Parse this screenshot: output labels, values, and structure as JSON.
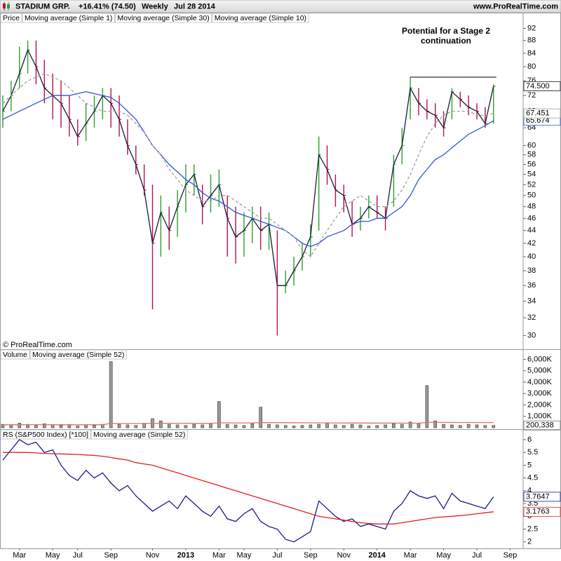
{
  "header": {
    "title": "STADIUM GRP.",
    "change": "+16.41% (74.50)",
    "period": "Weekly",
    "date": "Jul 28 2014",
    "site": "www.ProRealTime.com"
  },
  "copyright": "© ProRealTime.com",
  "chart_data": [
    {
      "type": "ohlc",
      "name": "Price",
      "log_scale": true,
      "ylim": [
        29.5,
        94
      ],
      "yticks": [
        92,
        88,
        84,
        80,
        76,
        72,
        68,
        64,
        60,
        58,
        56,
        54,
        52,
        50,
        48,
        46,
        44,
        42,
        40,
        38,
        36,
        34,
        32,
        30
      ],
      "up_color": "#2e9e2e",
      "down_color": "#b3124a",
      "high": [
        72,
        76,
        86,
        88,
        88,
        82,
        78,
        76,
        72,
        66,
        70,
        72,
        74,
        74,
        72,
        66,
        60,
        56,
        52,
        50,
        48,
        51,
        56,
        56,
        52,
        54,
        55,
        50,
        48,
        47,
        48,
        48,
        47,
        44,
        38,
        40,
        42,
        45,
        62,
        60,
        54,
        52,
        49,
        48,
        50,
        50,
        48,
        58,
        64,
        77,
        74,
        71,
        70,
        68,
        74,
        73,
        72,
        70,
        69,
        75,
        null,
        null,
        null,
        null
      ],
      "low": [
        64,
        68,
        74,
        78,
        75,
        70,
        66,
        64,
        62,
        60,
        61,
        64,
        66,
        64,
        62,
        58,
        54,
        50,
        33,
        40,
        41,
        43,
        47,
        50,
        45,
        47,
        48,
        40,
        39,
        40,
        42,
        41,
        41,
        30,
        35,
        36,
        38,
        40,
        44,
        52,
        48,
        47,
        43,
        44,
        46,
        46,
        44,
        48,
        56,
        66,
        67,
        66,
        64,
        62,
        66,
        69,
        67,
        66,
        64,
        65,
        null,
        null,
        null,
        null
      ],
      "close": [
        68,
        72,
        78,
        85,
        80,
        74,
        72,
        70,
        66,
        62,
        65,
        68,
        72,
        70,
        66,
        60,
        56,
        51,
        42,
        47,
        44,
        48,
        52,
        54,
        48,
        50,
        52,
        46,
        43,
        44,
        46,
        44,
        45,
        36,
        36,
        38,
        40,
        43,
        58,
        55,
        51,
        50,
        45,
        46,
        48,
        47,
        46,
        56,
        60,
        74,
        70,
        68,
        67,
        64,
        73,
        71,
        69,
        68,
        65,
        74.5,
        null,
        null,
        null,
        null
      ],
      "value_labels": [
        null,
        null,
        null,
        null,
        null,
        null,
        null,
        null,
        null,
        null,
        null,
        null,
        null,
        null,
        null,
        null,
        null,
        null,
        null,
        null,
        null,
        null,
        null,
        null,
        null,
        null,
        null,
        null,
        null,
        null,
        null,
        null,
        null,
        null,
        null,
        null,
        null,
        null,
        null,
        null,
        null,
        null,
        null,
        null,
        null,
        null,
        null,
        null,
        null,
        null,
        null,
        null,
        null,
        null,
        null,
        null,
        null,
        null,
        null,
        "74.50",
        null,
        null,
        null,
        null
      ],
      "annotation": [
        "Potential for a Stage 2",
        "continuation"
      ],
      "hline": 77,
      "series": [
        {
          "name": "Moving average (Simple 1)",
          "color": "#1a1a3a",
          "values": [
            68,
            72,
            78,
            85,
            80,
            74,
            72,
            70,
            66,
            62,
            65,
            68,
            72,
            70,
            66,
            60,
            56,
            51,
            42,
            47,
            44,
            48,
            52,
            54,
            48,
            50,
            52,
            46,
            43,
            44,
            46,
            44,
            45,
            36,
            36,
            38,
            40,
            43,
            58,
            55,
            51,
            50,
            45,
            46,
            48,
            47,
            46,
            56,
            60,
            74,
            70,
            68,
            67,
            64,
            73,
            71,
            69,
            68,
            65,
            74.5,
            null,
            null,
            null,
            null
          ],
          "value_labels": [
            null,
            null,
            null,
            null,
            null,
            null,
            null,
            null,
            null,
            null,
            null,
            null,
            null,
            null,
            null,
            null,
            null,
            null,
            null,
            null,
            null,
            null,
            null,
            null,
            null,
            null,
            null,
            null,
            null,
            null,
            null,
            null,
            null,
            null,
            null,
            null,
            null,
            null,
            null,
            null,
            null,
            null,
            null,
            null,
            null,
            null,
            null,
            null,
            null,
            null,
            null,
            null,
            null,
            null,
            null,
            null,
            null,
            null,
            null,
            "74.500",
            null,
            null,
            null,
            null
          ]
        },
        {
          "name": "Moving average (Simple 30)",
          "color": "#2f56d6",
          "show_last": true,
          "values": [
            66,
            67,
            68,
            69,
            70,
            71,
            72,
            72,
            72,
            72.5,
            73,
            72.5,
            72,
            71.5,
            70,
            68,
            66,
            63,
            60,
            58,
            56,
            54.5,
            53,
            52,
            50.5,
            49.5,
            49,
            48,
            47,
            46.5,
            46,
            45.5,
            45,
            44.5,
            44,
            43,
            42,
            41.5,
            42,
            43,
            43.5,
            44,
            45,
            45.5,
            45.5,
            46,
            46,
            47,
            48,
            50,
            53,
            55,
            57,
            58,
            59.5,
            61,
            62.5,
            63.5,
            64.5,
            65.674,
            null,
            null,
            null,
            null
          ]
        },
        {
          "name": "Moving average (Simple 10)",
          "color": "#a0a0a0",
          "dashed": true,
          "show_last": true,
          "values": [
            70,
            72,
            74,
            76,
            77,
            78,
            77,
            76,
            74,
            72,
            70,
            69,
            68,
            68,
            68,
            67,
            65,
            63,
            60,
            58,
            55,
            53,
            51,
            50,
            49,
            49,
            50,
            50,
            49,
            48,
            47,
            46,
            46,
            45,
            44,
            43,
            41,
            40,
            42,
            44,
            46,
            48,
            49,
            50,
            49,
            48,
            48,
            49,
            51,
            54,
            58,
            62,
            65,
            67,
            68,
            68,
            68,
            67,
            67,
            67.451,
            null,
            null,
            null,
            null
          ]
        }
      ]
    },
    {
      "type": "bar",
      "name": "Volume",
      "color": "#9a9a9a",
      "ylim": [
        0,
        6700
      ],
      "yticks": [
        {
          "value": 6000,
          "label": "6,000K"
        },
        {
          "value": 5000,
          "label": "5,000K"
        },
        {
          "value": 4000,
          "label": "4,000K"
        },
        {
          "value": 3000,
          "label": "3,000K"
        },
        {
          "value": 2000,
          "label": "2,000K"
        },
        {
          "value": 1000,
          "label": "1,000K"
        }
      ],
      "values": [
        300,
        250,
        400,
        300,
        200,
        350,
        250,
        200,
        300,
        150,
        250,
        200,
        300,
        5800,
        300,
        250,
        200,
        400,
        800,
        600,
        300,
        250,
        200,
        300,
        250,
        400,
        2300,
        300,
        250,
        200,
        350,
        1800,
        300,
        250,
        200,
        150,
        200,
        250,
        300,
        400,
        250,
        200,
        300,
        250,
        150,
        200,
        250,
        350,
        300,
        500,
        400,
        3700,
        600,
        300,
        250,
        200,
        300,
        250,
        200,
        200.338,
        null,
        null,
        null,
        null
      ],
      "value_labels": [
        null,
        null,
        null,
        null,
        null,
        null,
        null,
        null,
        null,
        null,
        null,
        null,
        null,
        null,
        null,
        null,
        null,
        null,
        null,
        null,
        null,
        null,
        null,
        null,
        null,
        null,
        null,
        null,
        null,
        null,
        null,
        null,
        null,
        null,
        null,
        null,
        null,
        null,
        null,
        null,
        null,
        null,
        null,
        null,
        null,
        null,
        null,
        null,
        null,
        null,
        null,
        null,
        null,
        null,
        null,
        null,
        null,
        null,
        null,
        "200,338",
        null,
        null,
        null,
        null
      ],
      "series": [
        {
          "name": "Moving average (Simple 52)",
          "color": "#e07070",
          "values": [
            260,
            262,
            265,
            268,
            270,
            268,
            266,
            264,
            262,
            260,
            262,
            264,
            266,
            380,
            378,
            376,
            374,
            378,
            390,
            398,
            396,
            394,
            392,
            390,
            388,
            392,
            430,
            428,
            426,
            424,
            422,
            450,
            448,
            446,
            444,
            440,
            436,
            432,
            428,
            426,
            424,
            420,
            418,
            416,
            414,
            412,
            410,
            408,
            406,
            404,
            402,
            470,
            468,
            466,
            464,
            462,
            460,
            458,
            456,
            454,
            null,
            null,
            null,
            null
          ]
        }
      ]
    },
    {
      "type": "line",
      "ylim": [
        1.8,
        6.3
      ],
      "yticks": [
        6,
        5.5,
        5,
        4.5,
        4,
        3.5,
        3,
        2.5,
        2
      ],
      "categories": [
        null,
        null,
        "Mar",
        null,
        null,
        null,
        "May",
        null,
        null,
        "Jul",
        null,
        null,
        null,
        "Sep",
        null,
        null,
        null,
        null,
        "Nov",
        null,
        null,
        null,
        "2013",
        null,
        null,
        null,
        "Mar",
        null,
        null,
        "May",
        null,
        null,
        null,
        "Jul",
        null,
        null,
        null,
        "Sep",
        null,
        null,
        null,
        "Nov",
        null,
        null,
        null,
        "2014",
        null,
        null,
        null,
        "Mar",
        null,
        null,
        null,
        "May",
        null,
        null,
        null,
        "Jul",
        null,
        null,
        null,
        "Sep",
        null,
        null
      ],
      "series": [
        {
          "name": "RS (S&P500 Index) [*100]",
          "color": "#1a1a8c",
          "show_last": true,
          "values": [
            5.2,
            5.6,
            6.0,
            5.8,
            5.9,
            5.5,
            5.6,
            5.0,
            4.6,
            4.4,
            4.8,
            4.5,
            4.7,
            4.3,
            4.0,
            4.2,
            3.8,
            3.5,
            3.2,
            3.4,
            3.6,
            3.3,
            3.8,
            3.5,
            3.2,
            3.0,
            3.4,
            2.9,
            2.8,
            3.1,
            3.3,
            2.8,
            2.6,
            2.5,
            2.1,
            2.0,
            2.2,
            2.4,
            3.6,
            3.3,
            3.0,
            2.8,
            2.9,
            2.6,
            2.7,
            2.6,
            2.5,
            3.2,
            3.5,
            4.0,
            3.8,
            3.7,
            3.8,
            3.3,
            3.9,
            3.6,
            3.5,
            3.4,
            3.3,
            3.7647,
            null,
            null,
            null,
            null
          ]
        },
        {
          "name": "Moving average (Simple 52)",
          "color": "#e02020",
          "show_last": true,
          "values": [
            5.5,
            5.5,
            5.5,
            5.5,
            5.48,
            5.46,
            5.45,
            5.44,
            5.43,
            5.42,
            5.4,
            5.38,
            5.35,
            5.3,
            5.25,
            5.2,
            5.1,
            5.05,
            5.0,
            4.9,
            4.8,
            4.7,
            4.6,
            4.5,
            4.4,
            4.3,
            4.2,
            4.1,
            4.0,
            3.9,
            3.8,
            3.7,
            3.6,
            3.5,
            3.4,
            3.3,
            3.2,
            3.1,
            3.0,
            2.95,
            2.9,
            2.85,
            2.8,
            2.75,
            2.72,
            2.7,
            2.7,
            2.7,
            2.75,
            2.8,
            2.85,
            2.9,
            2.95,
            2.98,
            3.0,
            3.03,
            3.06,
            3.1,
            3.14,
            3.1763,
            null,
            null,
            null,
            null
          ]
        }
      ]
    }
  ]
}
